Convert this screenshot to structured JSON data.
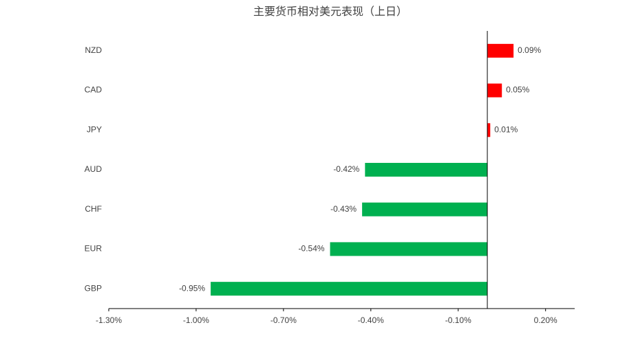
{
  "chart_data": {
    "type": "hbar",
    "title": "主要货币相对美元表现（上日）",
    "categories": [
      "NZD",
      "CAD",
      "JPY",
      "AUD",
      "CHF",
      "EUR",
      "GBP"
    ],
    "values": [
      0.09,
      0.05,
      0.01,
      -0.42,
      -0.43,
      -0.54,
      -0.95
    ],
    "value_labels": [
      "0.09%",
      "0.05%",
      "0.01%",
      "-0.42%",
      "-0.43%",
      "-0.54%",
      "-0.95%"
    ],
    "positive_color": "#ff0000",
    "negative_color": "#00b050",
    "xlim": [
      -1.3,
      0.3
    ],
    "xticks": [
      {
        "value": -1.3,
        "label": "-1.30%"
      },
      {
        "value": -1.0,
        "label": "-1.00%"
      },
      {
        "value": -0.7,
        "label": "-0.70%"
      },
      {
        "value": -0.4,
        "label": "-0.40%"
      },
      {
        "value": -0.1,
        "label": "-0.10%"
      },
      {
        "value": 0.2,
        "label": "0.20%"
      }
    ]
  }
}
